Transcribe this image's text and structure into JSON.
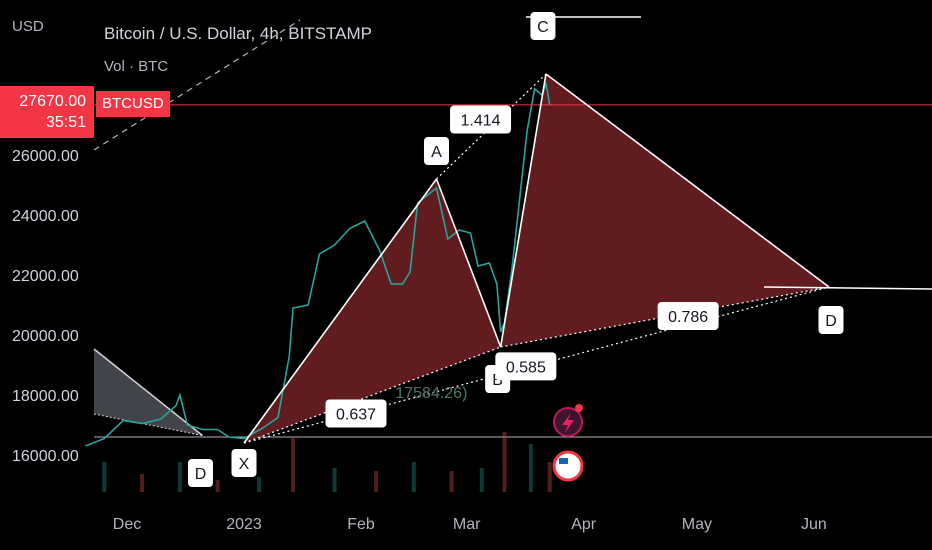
{
  "chart_data": {
    "type": "line",
    "title": "Bitcoin / U.S. Dollar, 4h, BITSTAMP",
    "subtitle": "Vol · BTC",
    "y_unit": "USD",
    "current_price": {
      "value": "27670.00",
      "countdown": "35:51",
      "symbol": "BTCUSD",
      "price": 27670
    },
    "y_ticks": [
      {
        "label": "26000.00",
        "v": 26000
      },
      {
        "label": "24000.00",
        "v": 24000
      },
      {
        "label": "22000.00",
        "v": 22000
      },
      {
        "label": "20000.00",
        "v": 20000
      },
      {
        "label": "18000.00",
        "v": 18000
      },
      {
        "label": "16000.00",
        "v": 16000
      }
    ],
    "x_ticks": [
      {
        "label": "Dec",
        "t": "2022-12-01"
      },
      {
        "label": "2023",
        "t": "2023-01-01"
      },
      {
        "label": "Feb",
        "t": "2023-02-01"
      },
      {
        "label": "Mar",
        "t": "2023-03-01"
      },
      {
        "label": "Apr",
        "t": "2023-04-01"
      },
      {
        "label": "May",
        "t": "2023-05-01"
      },
      {
        "label": "Jun",
        "t": "2023-06-01"
      }
    ],
    "pattern_points": [
      {
        "label": "X",
        "t": "2023-01-01",
        "price": 16400
      },
      {
        "label": "A",
        "t": "2023-02-21",
        "price": 25200
      },
      {
        "label": "B",
        "t": "2023-03-10",
        "price": 19600
      },
      {
        "label": "C",
        "t": "2023-03-22",
        "price": 28700
      },
      {
        "label": "D",
        "t": "2023-06-05",
        "price": 21600
      }
    ],
    "prior_pattern_d": {
      "label": "D",
      "t": "2022-12-21",
      "price": 16450
    },
    "ratios": [
      {
        "label": "0.637",
        "t": "2023-02-01",
        "price": 17350
      },
      {
        "label": "1.414",
        "t": "2023-03-06",
        "price": 27150
      },
      {
        "label": "0.585",
        "t": "2023-03-18",
        "price": 18920
      },
      {
        "label": "0.786",
        "t": "2023-04-30",
        "price": 20600
      }
    ],
    "annotation": {
      "label": "17584.26)",
      "t": "2023-02-26",
      "price": 18000
    },
    "price_series": [
      [
        "2022-11-20",
        16300
      ],
      [
        "2022-11-25",
        16550
      ],
      [
        "2022-11-30",
        17150
      ],
      [
        "2022-12-05",
        17050
      ],
      [
        "2022-12-10",
        17200
      ],
      [
        "2022-12-14",
        17650
      ],
      [
        "2022-12-15",
        18000
      ],
      [
        "2022-12-17",
        17000
      ],
      [
        "2022-12-21",
        16850
      ],
      [
        "2022-12-25",
        16850
      ],
      [
        "2022-12-28",
        16600
      ],
      [
        "2023-01-01",
        16550
      ],
      [
        "2023-01-06",
        16900
      ],
      [
        "2023-01-10",
        17250
      ],
      [
        "2023-01-13",
        19300
      ],
      [
        "2023-01-14",
        20900
      ],
      [
        "2023-01-18",
        21000
      ],
      [
        "2023-01-21",
        22700
      ],
      [
        "2023-01-25",
        23000
      ],
      [
        "2023-01-29",
        23550
      ],
      [
        "2023-02-02",
        23800
      ],
      [
        "2023-02-06",
        22800
      ],
      [
        "2023-02-09",
        21700
      ],
      [
        "2023-02-12",
        21700
      ],
      [
        "2023-02-14",
        22100
      ],
      [
        "2023-02-16",
        24400
      ],
      [
        "2023-02-18",
        24600
      ],
      [
        "2023-02-21",
        24900
      ],
      [
        "2023-02-24",
        23200
      ],
      [
        "2023-02-27",
        23500
      ],
      [
        "2023-03-02",
        23400
      ],
      [
        "2023-03-04",
        22300
      ],
      [
        "2023-03-07",
        22400
      ],
      [
        "2023-03-09",
        21700
      ],
      [
        "2023-03-10",
        20100
      ],
      [
        "2023-03-11",
        20400
      ],
      [
        "2023-03-13",
        22200
      ],
      [
        "2023-03-15",
        24500
      ],
      [
        "2023-03-17",
        26800
      ],
      [
        "2023-03-19",
        28200
      ],
      [
        "2023-03-21",
        28000
      ],
      [
        "2023-03-22",
        28400
      ],
      [
        "2023-03-23",
        27670
      ]
    ],
    "volume_series": [
      [
        "2022-11-25",
        0.5
      ],
      [
        "2022-12-05",
        0.3
      ],
      [
        "2022-12-15",
        0.5
      ],
      [
        "2022-12-25",
        0.2
      ],
      [
        "2023-01-05",
        0.25
      ],
      [
        "2023-01-14",
        0.9
      ],
      [
        "2023-01-25",
        0.4
      ],
      [
        "2023-02-05",
        0.35
      ],
      [
        "2023-02-15",
        0.5
      ],
      [
        "2023-02-25",
        0.35
      ],
      [
        "2023-03-05",
        0.4
      ],
      [
        "2023-03-11",
        1.0
      ],
      [
        "2023-03-18",
        0.8
      ],
      [
        "2023-03-23",
        0.5
      ]
    ],
    "colors": {
      "pattern_fill": "#6b1f24",
      "line": "#ffffff",
      "price_line": "#f23645",
      "up": "#26a69a",
      "down": "#ef5350",
      "support": "#b2b5be",
      "prior_fill": "#787b86"
    },
    "legend": "none",
    "grid": false
  }
}
